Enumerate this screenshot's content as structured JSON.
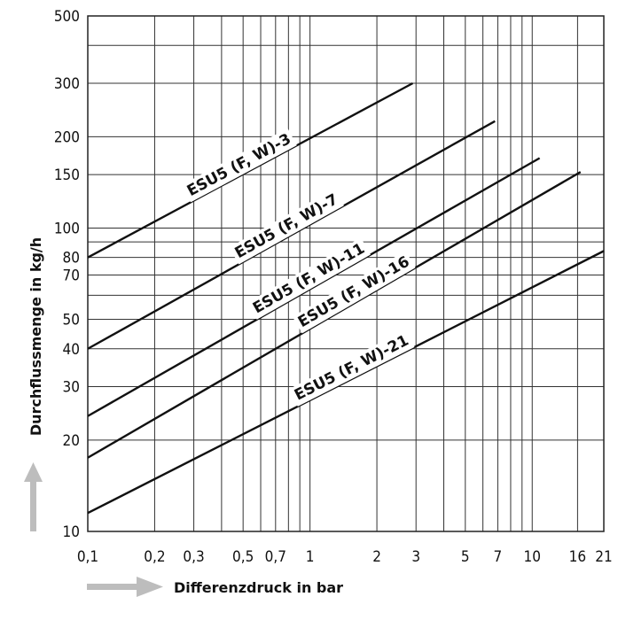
{
  "chart_data": {
    "type": "line",
    "xlabel": "Differenzdruck in bar",
    "ylabel": "Durchflussmenge in kg/h",
    "x_scale": "log",
    "y_scale": "log",
    "xlim": [
      0.1,
      21
    ],
    "ylim": [
      10,
      500
    ],
    "grid": true,
    "x_tick_labels": [
      {
        "v": 0.1,
        "t": "0,1"
      },
      {
        "v": 0.2,
        "t": "0,2"
      },
      {
        "v": 0.3,
        "t": "0,3"
      },
      {
        "v": 0.5,
        "t": "0,5"
      },
      {
        "v": 0.7,
        "t": "0,7"
      },
      {
        "v": 1,
        "t": "1"
      },
      {
        "v": 2,
        "t": "2"
      },
      {
        "v": 3,
        "t": "3"
      },
      {
        "v": 5,
        "t": "5"
      },
      {
        "v": 7,
        "t": "7"
      },
      {
        "v": 10,
        "t": "10"
      },
      {
        "v": 16,
        "t": "16"
      },
      {
        "v": 21,
        "t": "21"
      }
    ],
    "y_tick_labels": [
      {
        "v": 10,
        "t": "10"
      },
      {
        "v": 20,
        "t": "20"
      },
      {
        "v": 30,
        "t": "30"
      },
      {
        "v": 40,
        "t": "40"
      },
      {
        "v": 50,
        "t": "50"
      },
      {
        "v": 70,
        "t": "70"
      },
      {
        "v": 80,
        "t": "80"
      },
      {
        "v": 100,
        "t": "100"
      },
      {
        "v": 150,
        "t": "150"
      },
      {
        "v": 200,
        "t": "200"
      },
      {
        "v": 300,
        "t": "300"
      },
      {
        "v": 500,
        "t": "500"
      }
    ],
    "x_gridlines": [
      0.1,
      0.2,
      0.3,
      0.4,
      0.5,
      0.6,
      0.7,
      0.8,
      0.9,
      1,
      2,
      3,
      4,
      5,
      6,
      7,
      8,
      9,
      10,
      16,
      21
    ],
    "y_gridlines": [
      10,
      20,
      30,
      40,
      50,
      60,
      70,
      80,
      90,
      100,
      150,
      200,
      300,
      400,
      500
    ],
    "series": [
      {
        "name": "ESU5 (F, W)-3",
        "x": [
          0.1,
          2.9
        ],
        "y": [
          80,
          300
        ]
      },
      {
        "name": "ESU5 (F, W)-7",
        "x": [
          0.1,
          6.8
        ],
        "y": [
          40,
          225
        ]
      },
      {
        "name": "ESU5 (F, W)-11",
        "x": [
          0.1,
          10.8
        ],
        "y": [
          24,
          170
        ]
      },
      {
        "name": "ESU5 (F, W)-16",
        "x": [
          0.1,
          16.5
        ],
        "y": [
          17.5,
          153
        ]
      },
      {
        "name": "ESU5 (F, W)-21",
        "x": [
          0.1,
          21
        ],
        "y": [
          11.5,
          84
        ]
      }
    ]
  }
}
